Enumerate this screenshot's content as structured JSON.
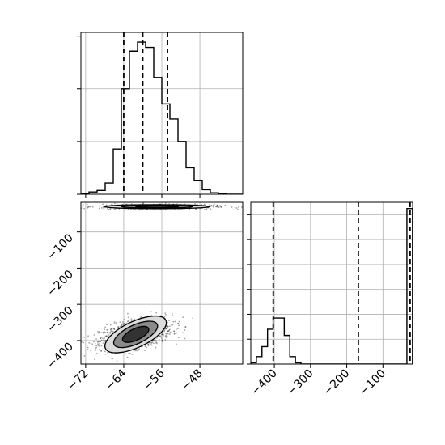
{
  "chart_data": {
    "type": "corner",
    "title": "",
    "parameters": [
      "",
      ""
    ],
    "colors": {
      "line": "#000000",
      "grid": "#b0b0b0",
      "point": "#000000",
      "contour_fill_levels": [
        "#f4f4f4",
        "#dcdcdc",
        "#b4b4b4",
        "#8a8a8a",
        "#5e5e5e",
        "#333333"
      ]
    },
    "grid": true,
    "param1": {
      "range": [
        -73,
        -39
      ],
      "ticks": [
        -72,
        -64,
        -56,
        -48
      ],
      "tick_labels": [
        "−72",
        "−64",
        "−56",
        "−48"
      ],
      "quantiles": [
        -64.0,
        -60.0,
        -54.8
      ],
      "hist_bins": [
        -73,
        -71.3,
        -69.6,
        -67.9,
        -66.2,
        -64.5,
        -62.8,
        -61.1,
        -59.4,
        -57.7,
        -56.0,
        -54.3,
        -52.6,
        -50.9,
        -49.2,
        -47.5,
        -45.8,
        -44.1,
        -42.4,
        -40.7,
        -39.0
      ],
      "hist_counts": [
        1,
        3,
        5,
        15,
        60,
        140,
        190,
        202,
        195,
        155,
        120,
        100,
        70,
        35,
        18,
        6,
        2,
        1,
        0,
        0
      ],
      "hist_ylim": [
        0,
        215
      ]
    },
    "param2": {
      "range": [
        -465,
        -18
      ],
      "ticks": [
        -400,
        -300,
        -200,
        -100
      ],
      "tick_labels": [
        "−400",
        "−300",
        "−200",
        "−100"
      ],
      "quantiles": [
        -403.0,
        -168.0,
        -25.0
      ],
      "hist_bins": [
        -465,
        -449.6,
        -434.2,
        -418.8,
        -403.4,
        -388.0,
        -372.6,
        -357.2,
        -341.8,
        -326.4,
        -311.0,
        -295.6,
        -280.2,
        -264.8,
        -249.4,
        -234.0,
        -218.6,
        -203.2,
        -187.8,
        -172.4,
        -157.0,
        -141.6,
        -126.2,
        -110.8,
        -95.4,
        -80.0,
        -64.6,
        -49.2,
        -33.8,
        -18.4
      ],
      "hist_counts": [
        1,
        6,
        14,
        28,
        37,
        37,
        23,
        6,
        1,
        0,
        0,
        0,
        0,
        0,
        0,
        0,
        0,
        0,
        0,
        0,
        0,
        0,
        0,
        0,
        0,
        0,
        0,
        0,
        125
      ],
      "hist_ylim": [
        0,
        130
      ],
      "hist_yticks": [
        0,
        20,
        40,
        60,
        80,
        100,
        120
      ]
    },
    "joint": {
      "clusters": [
        {
          "center": [
            -61.5,
            -383
          ],
          "sd": [
            3.8,
            21
          ],
          "rho": 0.45,
          "n": 1300
        },
        {
          "center": [
            -57.0,
            -30
          ],
          "sd": [
            6.0,
            3.5
          ],
          "rho": 0.0,
          "n": 650
        }
      ],
      "contours": [
        {
          "center": [
            -61.5,
            -383
          ],
          "levels": [
            [
              7.0,
              36
            ],
            [
              5.0,
              26
            ],
            [
              3.0,
              16
            ]
          ],
          "rho": 0.45
        },
        {
          "center": [
            -57.0,
            -30
          ],
          "levels": [
            [
              11.0,
              5.5
            ],
            [
              7.5,
              3.6
            ],
            [
              4.5,
              2.2
            ]
          ],
          "rho": 0.0
        }
      ]
    }
  }
}
